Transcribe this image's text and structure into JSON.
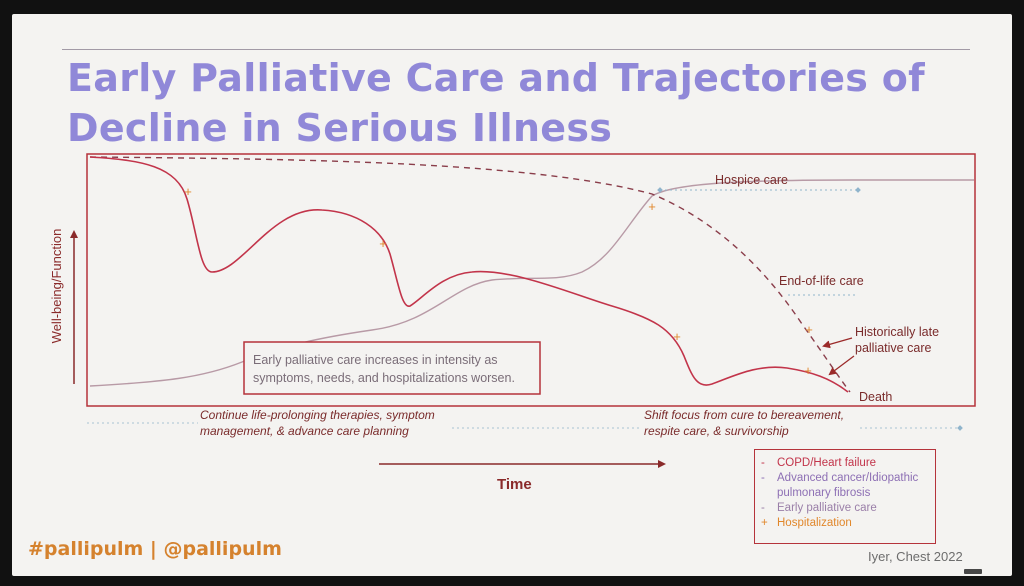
{
  "slide": {
    "title_line_1": "Early Palliative Care and Trajectories of",
    "title_line_2": "Decline in Serious Illness"
  },
  "diagram": {
    "y_axis_label": "Well-being/Function",
    "x_axis_label": "Time",
    "hospice_care": "Hospice care",
    "end_of_life_care": "End-of-life care",
    "historically_late_line_1": "Historically late",
    "historically_late_line_2": "palliative care",
    "death": "Death",
    "early_box_line_1": "Early palliative care increases in intensity as",
    "early_box_line_2": "symptoms, needs, and hospitalizations worsen.",
    "continue_line_1": "Continue life-prolonging therapies, symptom",
    "continue_line_2": "management, & advance care planning",
    "shift_line_1": "Shift focus from cure to bereavement,",
    "shift_line_2": "respite care, & survivorship"
  },
  "legend": {
    "items": [
      {
        "prefix": "-",
        "label": "COPD/Heart failure"
      },
      {
        "prefix": "-",
        "label": "Advanced cancer/Idiopathic pulmonary fibrosis"
      },
      {
        "prefix": "-",
        "label": "Early palliative care"
      },
      {
        "prefix": "+",
        "label": "Hospitalization"
      }
    ]
  },
  "footer": {
    "hashtag": "#pallipulm | @pallipulm",
    "citation": "Iyer, Chest 2022"
  },
  "colors": {
    "title": "#9088d8",
    "copd_line": "#c2344a",
    "cancer_line": "#8a3d4a",
    "early_palliative_line": "#b89aa6",
    "hospitalization_marker": "#e1872b",
    "hashtag": "#d5822e"
  }
}
